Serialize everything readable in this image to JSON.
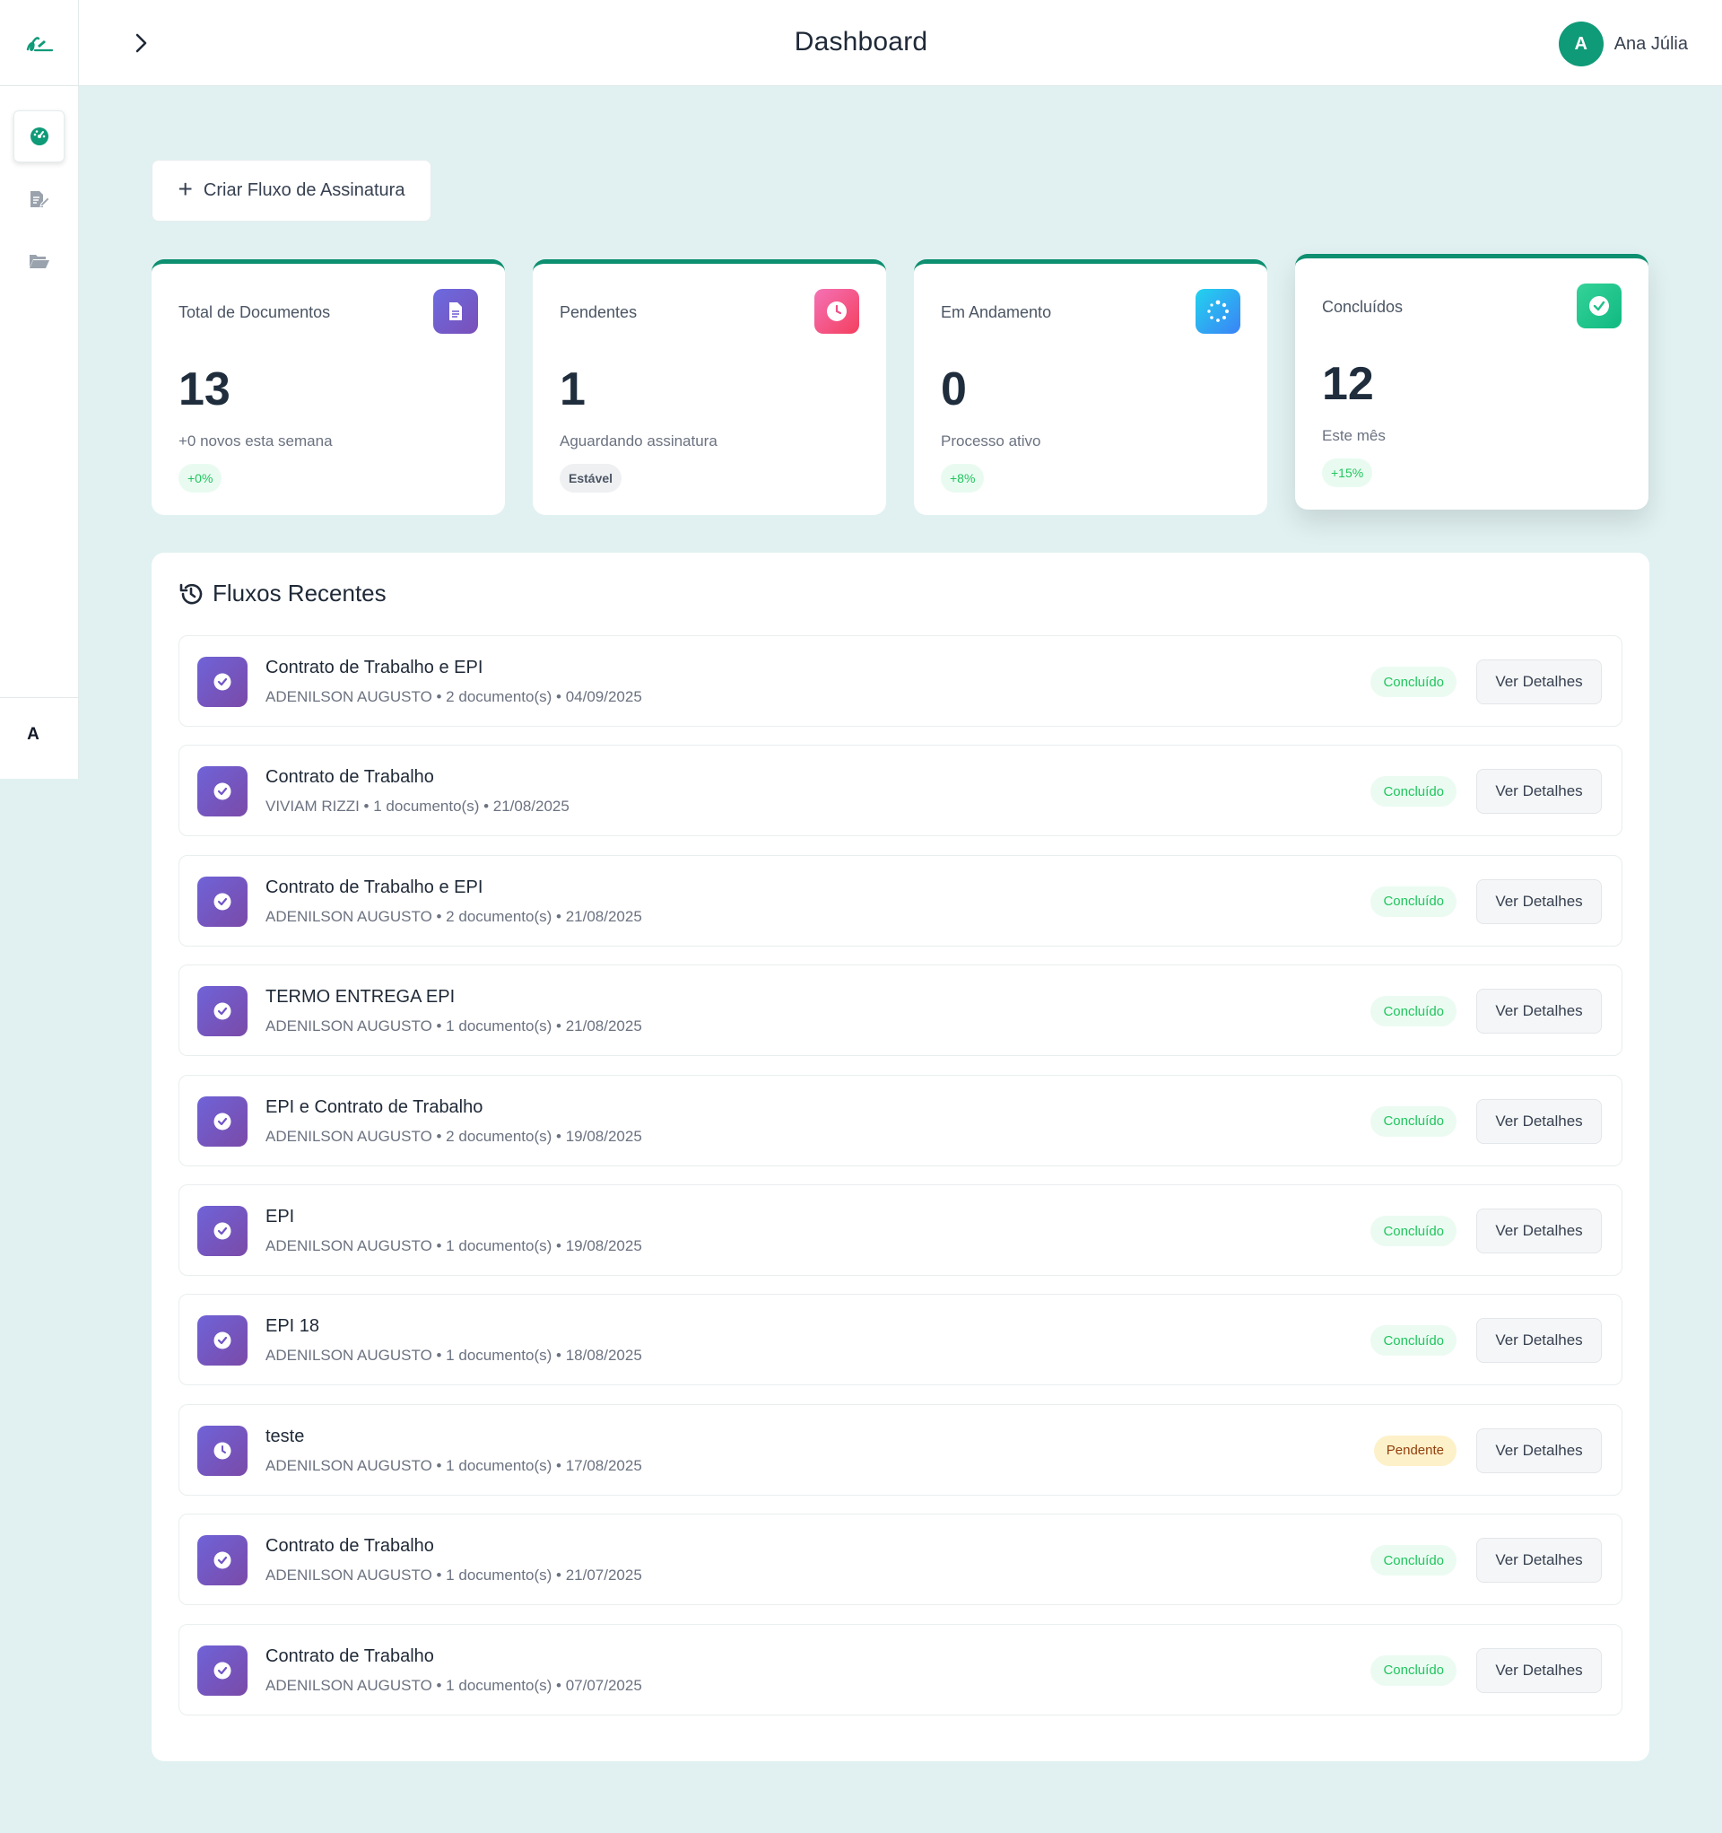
{
  "header": {
    "title": "Dashboard",
    "user": {
      "initial": "A",
      "name": "Ana Júlia"
    }
  },
  "sidebar": {
    "items": [
      {
        "icon": "dashboard-icon",
        "active": true
      },
      {
        "icon": "edit-document-icon",
        "active": false
      },
      {
        "icon": "folder-open-icon",
        "active": false
      }
    ],
    "user_initial": "A"
  },
  "actions": {
    "create_label": "Criar Fluxo de Assinatura"
  },
  "stats": [
    {
      "label": "Total de Documentos",
      "value": "13",
      "sub": "+0 novos esta semana",
      "badge": "+0%",
      "icon": "document-icon",
      "color": "#6b5bd2"
    },
    {
      "label": "Pendentes",
      "value": "1",
      "sub": "Aguardando assinatura",
      "badge": "Estável",
      "icon": "clock-icon",
      "color": "#ec4899"
    },
    {
      "label": "Em Andamento",
      "value": "0",
      "sub": "Processo ativo",
      "badge": "+8%",
      "icon": "spinner-icon",
      "color": "#1ec8f0"
    },
    {
      "label": "Concluídos",
      "value": "12",
      "sub": "Este mês",
      "badge": "+15%",
      "icon": "check-circle-icon",
      "color": "#34d399"
    }
  ],
  "recent": {
    "title": "Fluxos Recentes",
    "details_label": "Ver Detalhes",
    "items": [
      {
        "title": "Contrato de Trabalho e EPI",
        "meta": "ADENILSON AUGUSTO • 2 documento(s) • 04/09/2025",
        "status": "Concluído"
      },
      {
        "title": "Contrato de Trabalho",
        "meta": "VIVIAM RIZZI • 1 documento(s) • 21/08/2025",
        "status": "Concluído"
      },
      {
        "title": "Contrato de Trabalho e EPI",
        "meta": "ADENILSON AUGUSTO • 2 documento(s) • 21/08/2025",
        "status": "Concluído"
      },
      {
        "title": "TERMO ENTREGA EPI",
        "meta": "ADENILSON AUGUSTO • 1 documento(s) • 21/08/2025",
        "status": "Concluído"
      },
      {
        "title": "EPI e Contrato de Trabalho",
        "meta": "ADENILSON AUGUSTO • 2 documento(s) • 19/08/2025",
        "status": "Concluído"
      },
      {
        "title": "EPI",
        "meta": "ADENILSON AUGUSTO • 1 documento(s) • 19/08/2025",
        "status": "Concluído"
      },
      {
        "title": "EPI 18",
        "meta": "ADENILSON AUGUSTO • 1 documento(s) • 18/08/2025",
        "status": "Concluído"
      },
      {
        "title": "teste",
        "meta": "ADENILSON AUGUSTO • 1 documento(s) • 17/08/2025",
        "status": "Pendente"
      },
      {
        "title": "Contrato de Trabalho",
        "meta": "ADENILSON AUGUSTO • 1 documento(s) • 21/07/2025",
        "status": "Concluído"
      },
      {
        "title": "Contrato de Trabalho",
        "meta": "ADENILSON AUGUSTO • 1 documento(s) • 07/07/2025",
        "status": "Concluído"
      }
    ]
  }
}
